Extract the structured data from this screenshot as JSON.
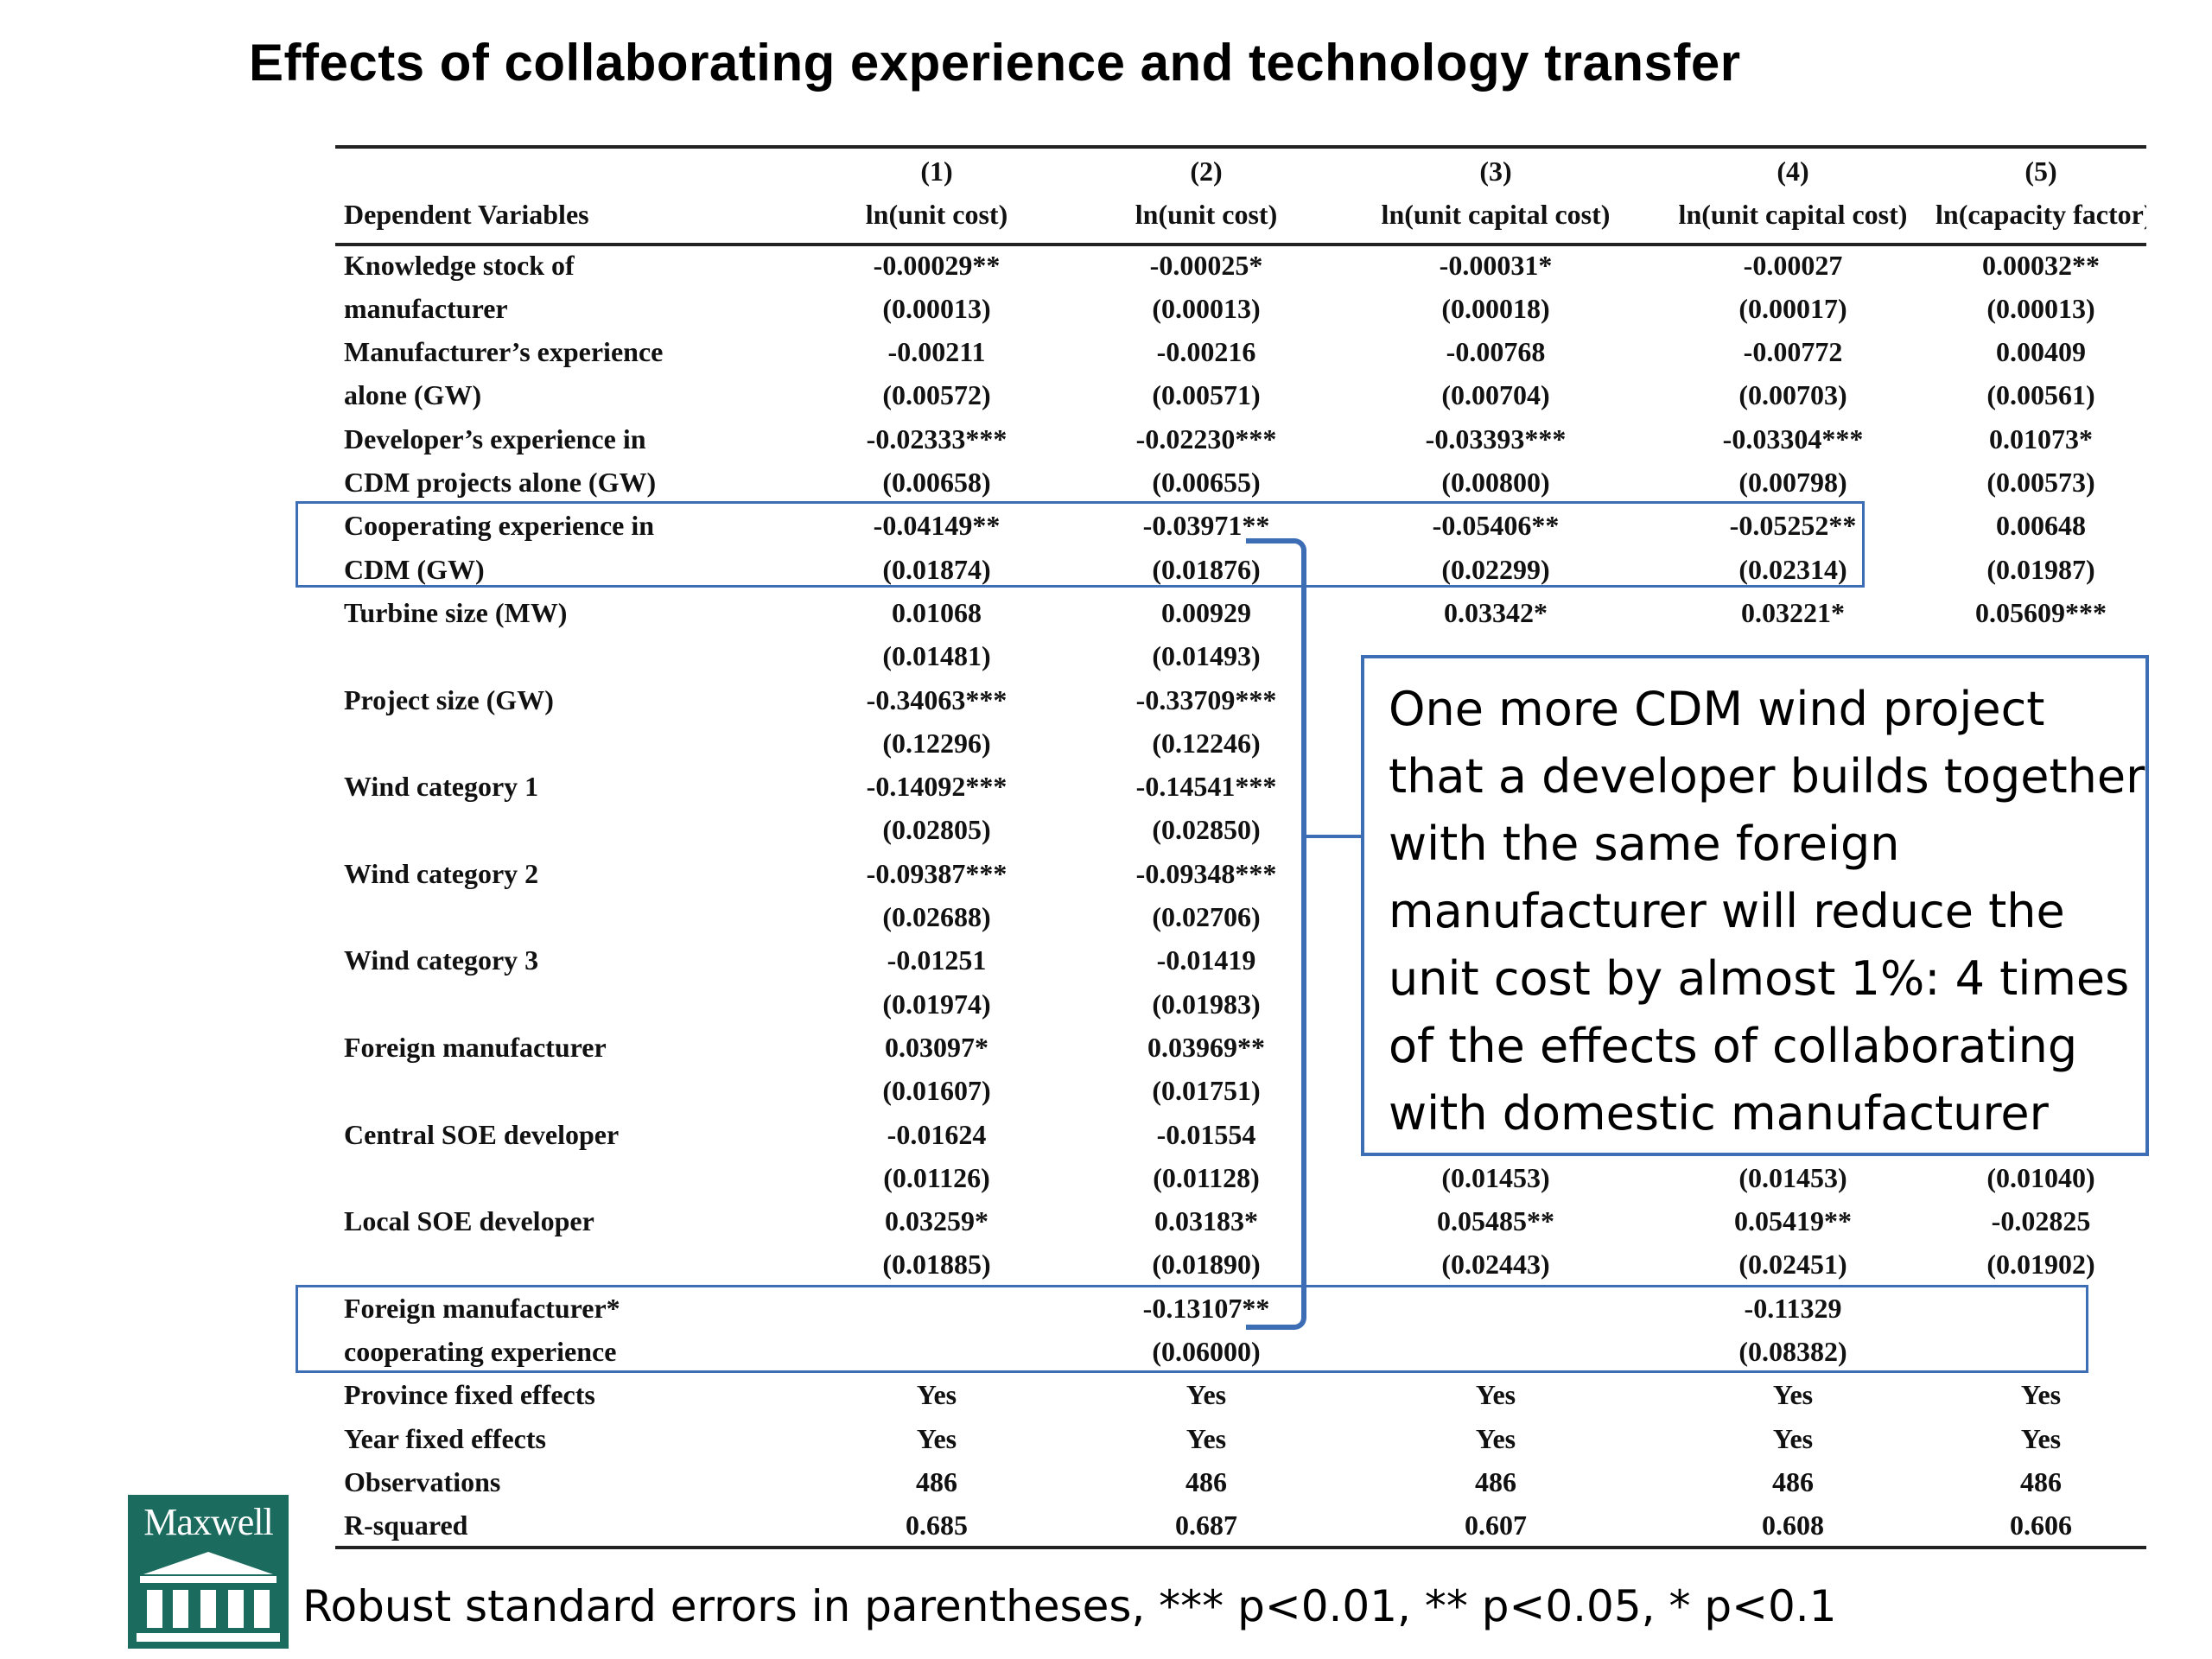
{
  "title": "Effects of collaborating experience and technology transfer",
  "table": {
    "header_numbers": [
      "(1)",
      "(2)",
      "(3)",
      "(4)",
      "(5)"
    ],
    "header_label": "Dependent Variables",
    "header_vars": [
      "ln(unit cost)",
      "ln(unit cost)",
      "ln(unit capital cost)",
      "ln(unit capital cost)",
      "ln(capacity factor)"
    ],
    "rows": [
      {
        "label": "Knowledge stock of",
        "cells": [
          "-0.00029**",
          "-0.00025*",
          "-0.00031*",
          "-0.00027",
          "0.00032**"
        ]
      },
      {
        "label": "manufacturer",
        "cells": [
          "(0.00013)",
          "(0.00013)",
          "(0.00018)",
          "(0.00017)",
          "(0.00013)"
        ]
      },
      {
        "label": "Manufacturer’s experience",
        "cells": [
          "-0.00211",
          "-0.00216",
          "-0.00768",
          "-0.00772",
          "0.00409"
        ]
      },
      {
        "label": "alone (GW)",
        "cells": [
          "(0.00572)",
          "(0.00571)",
          "(0.00704)",
          "(0.00703)",
          "(0.00561)"
        ]
      },
      {
        "label": "Developer’s experience in",
        "cells": [
          "-0.02333***",
          "-0.02230***",
          "-0.03393***",
          "-0.03304***",
          "0.01073*"
        ]
      },
      {
        "label": "CDM projects alone (GW)",
        "cells": [
          "(0.00658)",
          "(0.00655)",
          "(0.00800)",
          "(0.00798)",
          "(0.00573)"
        ]
      },
      {
        "label": "Cooperating experience in",
        "cells": [
          "-0.04149**",
          "-0.03971**",
          "-0.05406**",
          "-0.05252**",
          "0.00648"
        ]
      },
      {
        "label": "CDM (GW)",
        "cells": [
          "(0.01874)",
          "(0.01876)",
          "(0.02299)",
          "(0.02314)",
          "(0.01987)"
        ]
      },
      {
        "label": "Turbine size (MW)",
        "cells": [
          "0.01068",
          "0.00929",
          "0.03342*",
          "0.03221*",
          "0.05609***"
        ]
      },
      {
        "label": "",
        "cells": [
          "(0.01481)",
          "(0.01493)",
          "",
          "",
          ""
        ]
      },
      {
        "label": "Project size  (GW)",
        "cells": [
          "-0.34063***",
          "-0.33709***",
          "",
          "",
          ""
        ]
      },
      {
        "label": "",
        "cells": [
          "(0.12296)",
          "(0.12246)",
          "",
          "",
          ""
        ]
      },
      {
        "label": "Wind category 1",
        "cells": [
          "-0.14092***",
          "-0.14541***",
          "",
          "",
          ""
        ]
      },
      {
        "label": "",
        "cells": [
          "(0.02805)",
          "(0.02850)",
          "",
          "",
          ""
        ]
      },
      {
        "label": "Wind category 2",
        "cells": [
          "-0.09387***",
          "-0.09348***",
          "",
          "",
          ""
        ]
      },
      {
        "label": "",
        "cells": [
          "(0.02688)",
          "(0.02706)",
          "",
          "",
          ""
        ]
      },
      {
        "label": "Wind category 3",
        "cells": [
          "-0.01251",
          "-0.01419",
          "",
          "",
          ""
        ]
      },
      {
        "label": "",
        "cells": [
          "(0.01974)",
          "(0.01983)",
          "",
          "",
          ""
        ]
      },
      {
        "label": "Foreign manufacturer",
        "cells": [
          "0.03097*",
          "0.03969**",
          "",
          "",
          ""
        ]
      },
      {
        "label": "",
        "cells": [
          "(0.01607)",
          "(0.01751)",
          "",
          "",
          ""
        ]
      },
      {
        "label": "Central SOE developer",
        "cells": [
          "-0.01624",
          "-0.01554",
          "",
          "",
          ""
        ]
      },
      {
        "label": "",
        "cells": [
          "(0.01126)",
          "(0.01128)",
          "(0.01453)",
          "(0.01453)",
          "(0.01040)"
        ]
      },
      {
        "label": "Local SOE developer",
        "cells": [
          "0.03259*",
          "0.03183*",
          "0.05485**",
          "0.05419**",
          "-0.02825"
        ]
      },
      {
        "label": "",
        "cells": [
          "(0.01885)",
          "(0.01890)",
          "(0.02443)",
          "(0.02451)",
          "(0.01902)"
        ]
      },
      {
        "label": "Foreign manufacturer*",
        "cells": [
          "",
          "-0.13107**",
          "",
          "-0.11329",
          ""
        ]
      },
      {
        "label": "cooperating experience",
        "cells": [
          "",
          "(0.06000)",
          "",
          "(0.08382)",
          ""
        ]
      },
      {
        "label": "Province fixed effects",
        "cells": [
          "Yes",
          "Yes",
          "Yes",
          "Yes",
          "Yes"
        ]
      },
      {
        "label": "Year fixed effects",
        "cells": [
          "Yes",
          "Yes",
          "Yes",
          "Yes",
          "Yes"
        ]
      },
      {
        "label": "Observations",
        "cells": [
          "486",
          "486",
          "486",
          "486",
          "486"
        ]
      },
      {
        "label": "R-squared",
        "cells": [
          "0.685",
          "0.687",
          "0.607",
          "0.608",
          "0.606"
        ]
      }
    ]
  },
  "callout_lines": [
    "One more CDM wind project",
    "that a developer builds together",
    "with the same foreign",
    "manufacturer will reduce the",
    "unit cost by almost 1%: 4 times",
    "of the effects of collaborating",
    "with domestic manufacturer"
  ],
  "logo_text": "Maxwell",
  "footnote": "Robust standard errors in parentheses, *** p<0.01, ** p<0.05, * p<0.1",
  "colors": {
    "highlight": "#3d6db5",
    "logo_bg": "#1b6b5e",
    "text": "#111111"
  }
}
